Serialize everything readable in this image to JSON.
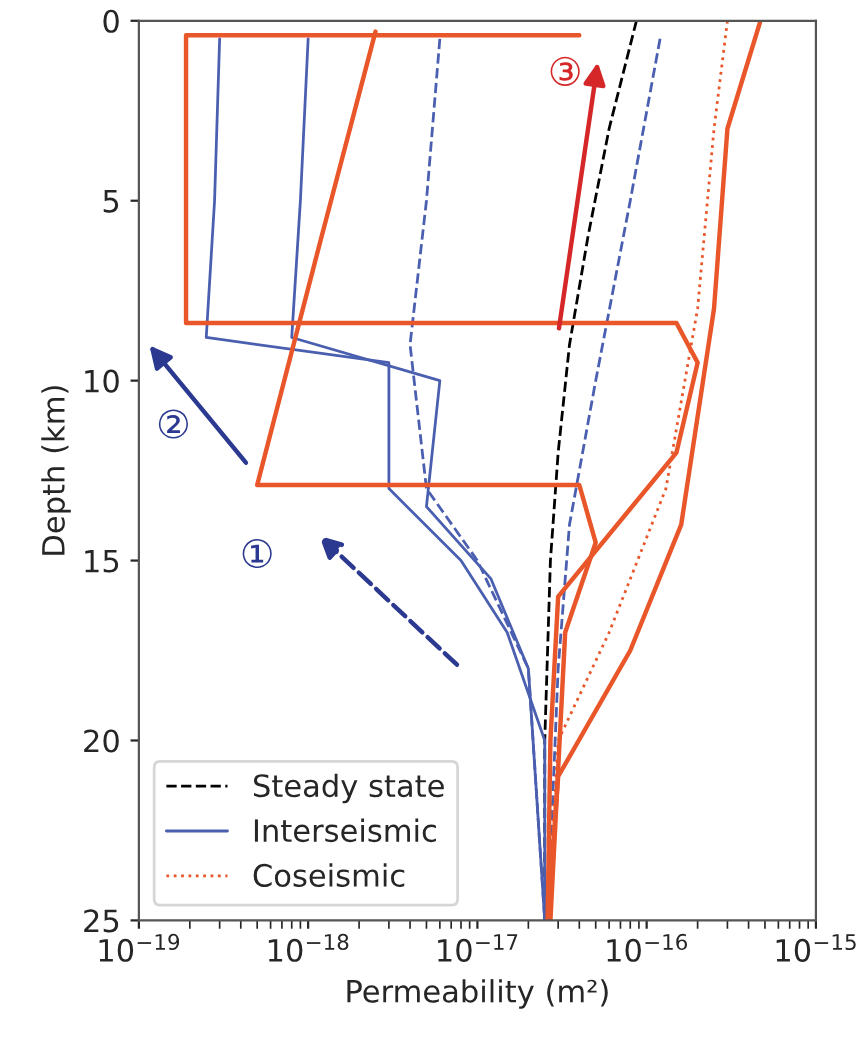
{
  "chart_data": {
    "type": "line",
    "xlabel": "Permeability (m²)",
    "ylabel": "Depth (km)",
    "log": "x",
    "xlim": [
      1e-19,
      1e-15
    ],
    "ylim": [
      25,
      0
    ],
    "xticks": [
      {
        "value": 1e-19,
        "label": "10$^{−19}$"
      },
      {
        "value": 1e-18,
        "label": "10$^{−18}$"
      },
      {
        "value": 1e-17,
        "label": "10$^{−17}$"
      },
      {
        "value": 1e-16,
        "label": "10$^{−16}$"
      },
      {
        "value": 1e-15,
        "label": "10$^{−15}$"
      }
    ],
    "yticks": [
      0,
      5,
      10,
      15,
      20,
      25
    ],
    "grid": false,
    "legend": "bottom left",
    "marker": "none",
    "series": [
      {
        "name": "Steady state",
        "color": "#000000",
        "line_style": "dashed",
        "x": [
          8.7e-17,
          6e-17,
          4.5e-17,
          3.5e-17,
          3e-17,
          2.7e-17,
          2.5e-17,
          2.5e-17
        ],
        "values": [
          0,
          3,
          6,
          9,
          12,
          15,
          20,
          25
        ]
      },
      {
        "name": "Interseismic",
        "color": "#4a5fb0",
        "line_style": "solid",
        "x": [
          3e-19,
          2.8e-19,
          2.5e-19,
          3e-18,
          3e-18,
          8e-18,
          1.5e-17,
          2.5e-17,
          2.5e-17
        ],
        "values": [
          0.5,
          5,
          8.8,
          9.5,
          13,
          15,
          17,
          20,
          25
        ]
      },
      {
        "color": "#4a5fb0",
        "line_style": "solid",
        "x": [
          1e-18,
          9e-19,
          8e-19,
          6e-18,
          5e-18,
          1.2e-17,
          2e-17,
          2.5e-17
        ],
        "values": [
          0.5,
          5,
          8.8,
          10,
          13.5,
          15.5,
          18,
          25
        ]
      },
      {
        "color": "#4a5fb0",
        "line_style": "dashed",
        "x": [
          6e-18,
          5e-18,
          4e-18,
          5e-18,
          1e-17,
          2e-17,
          2.5e-17
        ],
        "values": [
          0.5,
          5,
          9,
          13,
          15,
          18,
          25
        ]
      },
      {
        "color": "#4a5fb0",
        "line_style": "dashed",
        "x": [
          1.2e-16,
          8e-17,
          5e-17,
          3.5e-17,
          3e-17,
          2.6e-17
        ],
        "values": [
          0.5,
          5,
          10,
          14,
          18,
          25
        ]
      },
      {
        "name": "Coseismic",
        "color": "#e8562a",
        "line_style": "dotted",
        "x": [
          3e-16,
          2.5e-16,
          2e-16,
          1.3e-16,
          6e-17,
          3e-17,
          2.6e-17
        ],
        "values": [
          0,
          3,
          8,
          13,
          17,
          20,
          25
        ]
      },
      {
        "color": "#e8562a",
        "line_style": "solid",
        "x": [
          4e-17,
          1.9e-19,
          1.9e-19,
          1.5e-16,
          2e-16,
          1.5e-16,
          3e-17,
          2.7e-17,
          2.6e-17
        ],
        "values": [
          0.4,
          0.4,
          8.4,
          8.4,
          9.5,
          12,
          16,
          20,
          25
        ]
      },
      {
        "color": "#e8562a",
        "line_style": "solid",
        "x": [
          2.5e-18,
          1.2e-18,
          5e-19,
          4e-17,
          5e-17,
          3.3e-17,
          2.7e-17
        ],
        "values": [
          0.3,
          6,
          12.9,
          12.9,
          14.5,
          17,
          25
        ]
      },
      {
        "color": "#e8562a",
        "line_style": "solid",
        "x": [
          4.7e-16,
          3e-16,
          2.5e-16,
          1.6e-16,
          8e-17,
          3e-17,
          2.6e-17
        ],
        "values": [
          0,
          3,
          8,
          14,
          17.5,
          21,
          25
        ]
      }
    ],
    "annotations": [
      "①",
      "②",
      "③"
    ]
  }
}
